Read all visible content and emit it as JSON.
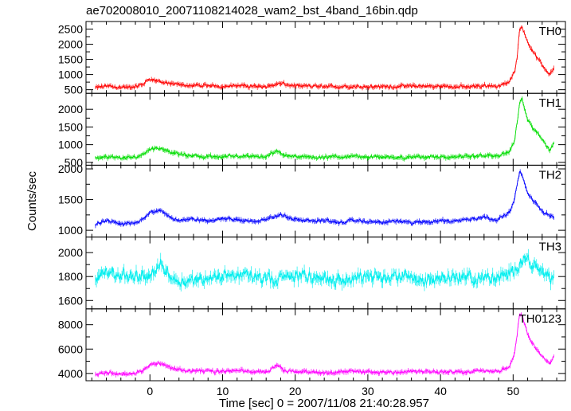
{
  "chart_data": {
    "type": "line",
    "title": "ae702008010_20071108214028_wam2_bst_4band_16bin.qdp",
    "xlabel": "Time [sec] 0 = 2007/11/08 21:40:28.957",
    "ylabel": "Counts/sec",
    "xlim": [
      -8.8,
      57.2
    ],
    "x_ticks": [
      "0",
      "10",
      "20",
      "30",
      "40",
      "50"
    ],
    "x_tick_values": [
      0,
      10,
      20,
      30,
      40,
      50
    ],
    "grid": false,
    "legend": "none",
    "panels": [
      {
        "name": "TH0",
        "color": "#ff0000",
        "ylim": [
          380,
          2750
        ],
        "y_ticks": [
          "500",
          "1000",
          "1500",
          "2000",
          "2500"
        ],
        "y_tick_values": [
          500,
          1000,
          1500,
          2000,
          2500
        ],
        "x": [
          -7.5,
          -6,
          -4,
          -2,
          -1,
          0,
          1,
          2,
          3,
          5,
          8,
          12,
          16,
          18,
          20,
          24,
          28,
          32,
          36,
          40,
          44,
          46,
          48,
          49.5,
          50.2,
          50.6,
          50.9,
          51.2,
          51.6,
          52,
          52.6,
          53.4,
          54.2,
          55,
          55.6
        ],
        "values": [
          560,
          620,
          570,
          600,
          680,
          850,
          790,
          720,
          680,
          650,
          620,
          630,
          610,
          700,
          620,
          600,
          610,
          600,
          620,
          610,
          600,
          640,
          610,
          750,
          1100,
          1700,
          2550,
          2600,
          2300,
          2100,
          1800,
          1500,
          1250,
          1000,
          1250
        ]
      },
      {
        "name": "TH1",
        "color": "#00dd00",
        "ylim": [
          420,
          2450
        ],
        "y_ticks": [
          "500",
          "1000",
          "1500",
          "2000"
        ],
        "y_tick_values": [
          500,
          1000,
          1500,
          2000
        ],
        "x": [
          -7.5,
          -6,
          -4,
          -2,
          -1,
          0,
          1,
          2,
          3,
          5,
          8,
          12,
          16,
          17.5,
          18.5,
          20,
          24,
          28,
          32,
          36,
          40,
          44,
          46,
          48,
          49.5,
          50.2,
          50.6,
          50.9,
          51.2,
          51.6,
          52,
          52.6,
          53.4,
          54.2,
          55,
          55.6
        ],
        "values": [
          620,
          650,
          620,
          640,
          720,
          880,
          900,
          880,
          780,
          700,
          660,
          680,
          650,
          850,
          700,
          660,
          650,
          660,
          640,
          650,
          640,
          660,
          700,
          680,
          800,
          1100,
          1700,
          2200,
          2300,
          2000,
          1700,
          1500,
          1300,
          1100,
          850,
          1000
        ]
      },
      {
        "name": "TH2",
        "color": "#0000ff",
        "ylim": [
          890,
          2060
        ],
        "y_ticks": [
          "1000",
          "1500",
          "2000"
        ],
        "y_tick_values": [
          1000,
          1500,
          2000
        ],
        "x": [
          -7.5,
          -6,
          -4,
          -2,
          -1,
          0,
          1,
          2,
          3,
          4,
          6,
          8,
          10,
          12,
          14,
          16,
          18,
          20,
          22,
          24,
          26,
          28,
          30,
          32,
          34,
          36,
          38,
          40,
          42,
          44,
          46,
          48,
          49.5,
          50.2,
          50.6,
          50.9,
          51.2,
          51.6,
          52,
          52.6,
          53.4,
          54.2,
          55,
          55.6
        ],
        "values": [
          1080,
          1150,
          1100,
          1120,
          1180,
          1300,
          1320,
          1280,
          1200,
          1160,
          1180,
          1150,
          1200,
          1170,
          1150,
          1180,
          1250,
          1180,
          1150,
          1170,
          1120,
          1160,
          1140,
          1130,
          1150,
          1120,
          1140,
          1160,
          1150,
          1180,
          1220,
          1170,
          1300,
          1500,
          1800,
          1950,
          1900,
          1750,
          1600,
          1500,
          1400,
          1300,
          1250,
          1200
        ]
      },
      {
        "name": "TH3",
        "color": "#00eeee",
        "ylim": [
          1530,
          2130
        ],
        "y_ticks": [
          "1600",
          "1800",
          "2000"
        ],
        "y_tick_values": [
          1600,
          1800,
          2000
        ],
        "x": [
          -7.5,
          -6,
          -4,
          -2,
          0,
          1.5,
          3,
          5,
          8,
          11,
          14,
          17,
          20,
          23,
          26,
          29,
          32,
          35,
          38,
          41,
          44,
          47,
          49.5,
          51,
          52,
          53.5,
          55,
          55.6
        ],
        "values": [
          1780,
          1840,
          1810,
          1790,
          1820,
          1900,
          1800,
          1760,
          1790,
          1820,
          1800,
          1760,
          1810,
          1790,
          1770,
          1800,
          1780,
          1810,
          1760,
          1800,
          1790,
          1780,
          1820,
          1920,
          1950,
          1850,
          1800,
          1780
        ]
      },
      {
        "name": "TH0123",
        "color": "#ff00ff",
        "ylim": [
          3400,
          9300
        ],
        "y_ticks": [
          "4000",
          "6000",
          "8000"
        ],
        "y_tick_values": [
          4000,
          6000,
          8000
        ],
        "x": [
          -7.5,
          -6,
          -4,
          -2,
          -1,
          0,
          1,
          2,
          3,
          5,
          8,
          12,
          16,
          17.5,
          18.5,
          20,
          24,
          28,
          32,
          36,
          40,
          44,
          46,
          48,
          49.5,
          50.2,
          50.6,
          50.9,
          51.2,
          51.6,
          52,
          52.6,
          53.4,
          54.2,
          55,
          55.6
        ],
        "values": [
          3900,
          4050,
          3950,
          4000,
          4250,
          4750,
          4800,
          4700,
          4450,
          4250,
          4150,
          4200,
          4100,
          4700,
          4250,
          4150,
          4100,
          4150,
          4100,
          4150,
          4100,
          4150,
          4300,
          4150,
          4600,
          5600,
          7500,
          8900,
          8800,
          8000,
          7200,
          6500,
          5800,
          5200,
          4750,
          5500
        ]
      }
    ]
  }
}
